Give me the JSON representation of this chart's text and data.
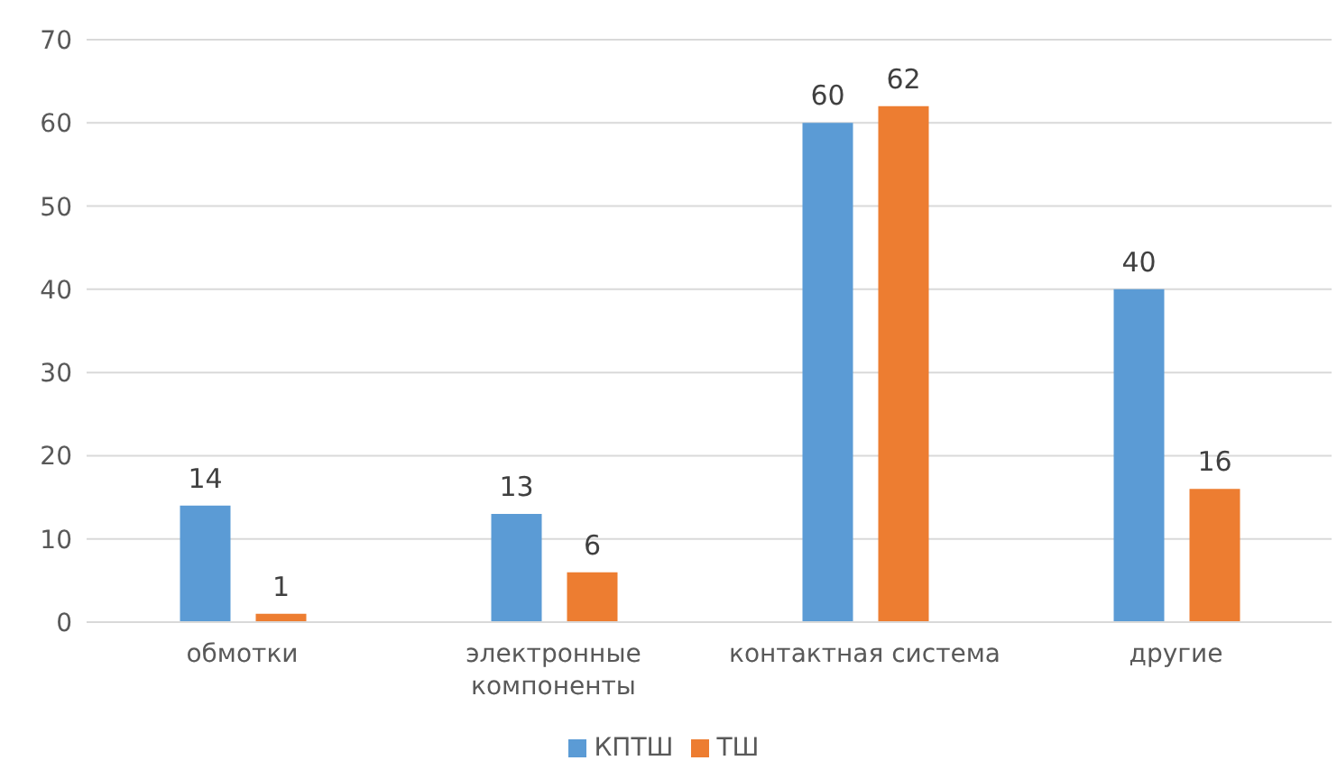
{
  "chart_data": {
    "type": "bar",
    "categories": [
      "обмотки",
      "электронные компоненты",
      "контактная система",
      "другие"
    ],
    "series": [
      {
        "name": "КПТШ",
        "color": "#5b9bd5",
        "values": [
          14,
          13,
          60,
          40
        ]
      },
      {
        "name": "ТШ",
        "color": "#ed7d31",
        "values": [
          1,
          6,
          62,
          16
        ]
      }
    ],
    "ylim": [
      0,
      70
    ],
    "yticks": [
      0,
      10,
      20,
      30,
      40,
      50,
      60,
      70
    ],
    "grid": "y",
    "legend": "bottom",
    "data_labels": true
  }
}
